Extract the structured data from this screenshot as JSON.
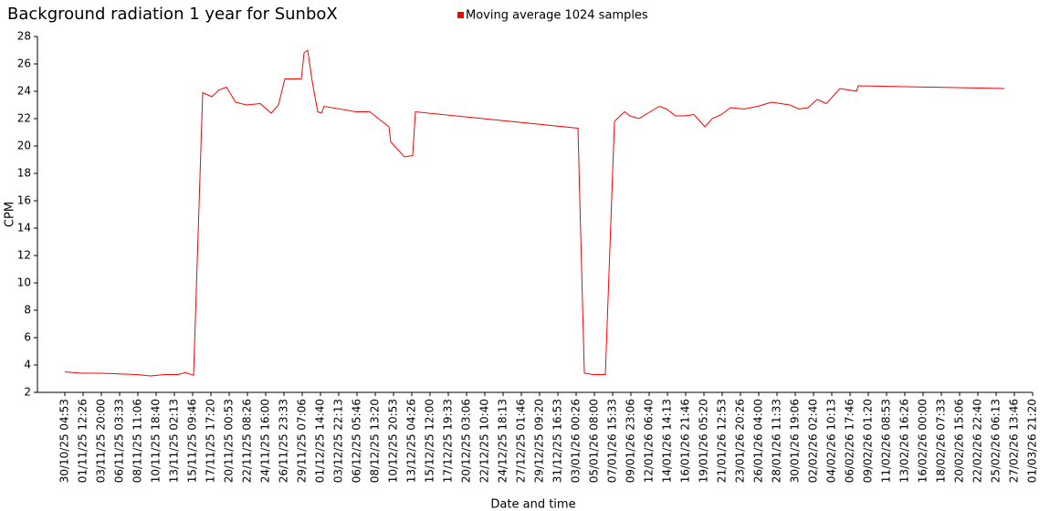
{
  "chart_data": {
    "type": "line",
    "title": "Background radiation 1 year for SunboX",
    "x_label": "Date and time",
    "y_label": "CPM",
    "x": [
      "30/10/25 04:53",
      "01/11/25 09:41",
      "03/11/25 17:14",
      "06/11/25 00:48",
      "08/11/25 08:21",
      "10/11/25 02:00",
      "11/11/25 19:40",
      "13/11/25 13:20",
      "14/11/25 11:33",
      "15/11/25 12:33",
      "16/11/25 16:19",
      "17/11/25 20:07",
      "18/11/25 18:20",
      "19/11/25 16:33",
      "20/11/25 20:20",
      "22/11/25 05:41",
      "23/11/25 23:20",
      "25/11/25 08:40",
      "26/11/25 06:54",
      "27/11/25 02:20",
      "29/11/25 04:21",
      "29/11/25 12:40",
      "29/11/25 23:46",
      "30/11/25 13:39",
      "01/12/25 06:19",
      "01/12/25 17:27",
      "02/12/25 01:47",
      "06/12/25 03:01",
      "07/12/25 20:40",
      "10/12/25 07:00",
      "10/12/25 12:33",
      "12/12/25 06:13",
      "13/12/25 07:13",
      "13/12/25 15:33",
      "03/01/26 05:59",
      "04/01/26 01:26",
      "05/01/26 05:14",
      "06/01/26 17:20",
      "07/01/26 21:06",
      "09/01/26 03:40",
      "09/01/26 20:21",
      "11/01/26 00:06",
      "12/01/26 09:27",
      "13/01/26 13:13",
      "14/01/26 11:28",
      "15/01/26 15:13",
      "16/01/26 19:01",
      "17/01/26 22:46",
      "19/01/26 08:07",
      "20/01/26 06:20",
      "21/01/26 10:08",
      "22/01/26 13:53",
      "24/01/26 07:33",
      "26/01/26 01:14",
      "27/01/26 18:54",
      "30/01/26 02:27",
      "31/01/26 06:13",
      "01/02/26 10:00",
      "02/02/26 13:47",
      "03/02/26 17:34",
      "05/02/26 11:13",
      "07/02/26 13:13",
      "07/02/26 18:46",
      "26/02/26 07:13"
    ],
    "series": [
      {
        "name": "Moving average 1024 samples",
        "color": "#ff0000",
        "values": [
          3.5,
          3.4,
          3.4,
          3.35,
          3.3,
          3.2,
          3.3,
          3.3,
          3.45,
          3.25,
          23.9,
          23.6,
          24.1,
          24.3,
          23.2,
          23.0,
          23.1,
          22.4,
          23.0,
          24.9,
          24.9,
          26.8,
          27.0,
          24.7,
          22.5,
          22.4,
          22.9,
          22.5,
          22.5,
          21.4,
          20.3,
          19.2,
          19.3,
          22.5,
          21.3,
          3.4,
          3.3,
          3.3,
          21.8,
          22.5,
          22.2,
          22.0,
          22.5,
          22.9,
          22.7,
          22.2,
          22.2,
          22.3,
          21.4,
          22.0,
          22.3,
          22.8,
          22.7,
          22.9,
          23.2,
          23.0,
          22.7,
          22.8,
          23.4,
          23.1,
          24.2,
          24.0,
          24.4,
          24.2
        ]
      }
    ],
    "xlim": [
      "30/10/25 04:53",
      "01/03/26 21:20"
    ],
    "xticks": [
      "30/10/25 04:53",
      "01/11/25 12:26",
      "03/11/25 20:00",
      "06/11/25 03:33",
      "08/11/25 11:06",
      "10/11/25 18:40",
      "13/11/25 02:13",
      "15/11/25 09:46",
      "17/11/25 17:20",
      "20/11/25 00:53",
      "22/11/25 08:26",
      "24/11/25 16:00",
      "26/11/25 23:33",
      "29/11/25 07:06",
      "01/12/25 14:40",
      "03/12/25 22:13",
      "06/12/25 05:46",
      "08/12/25 13:20",
      "10/12/25 20:53",
      "13/12/25 04:26",
      "15/12/25 12:00",
      "17/12/25 19:33",
      "20/12/25 03:06",
      "22/12/25 10:40",
      "24/12/25 18:13",
      "27/12/25 01:46",
      "29/12/25 09:20",
      "31/12/25 16:53",
      "03/01/26 00:26",
      "05/01/26 08:00",
      "07/01/26 15:33",
      "09/01/26 23:06",
      "12/01/26 06:40",
      "14/01/26 14:13",
      "16/01/26 21:46",
      "19/01/26 05:20",
      "21/01/26 12:53",
      "23/01/26 20:26",
      "26/01/26 04:00",
      "28/01/26 11:33",
      "30/01/26 19:06",
      "02/02/26 02:40",
      "04/02/26 10:13",
      "06/02/26 17:46",
      "09/02/26 01:20",
      "11/02/26 08:53",
      "13/02/26 16:26",
      "16/02/26 00:00",
      "18/02/26 07:33",
      "20/02/26 15:06",
      "22/02/26 22:40",
      "25/02/26 06:13",
      "27/02/26 13:46",
      "01/03/26 21:20"
    ],
    "ylim": [
      2,
      28
    ],
    "yticks": [
      2,
      4,
      6,
      8,
      10,
      12,
      14,
      16,
      18,
      20,
      22,
      24,
      26,
      28
    ],
    "grid": false,
    "legend": "top"
  }
}
